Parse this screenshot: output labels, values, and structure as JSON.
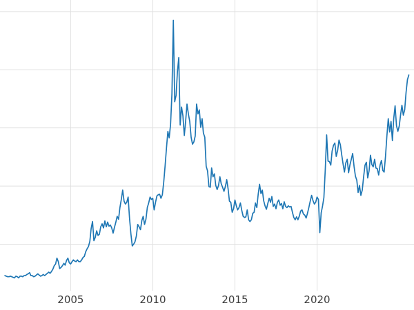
{
  "chart_data": {
    "type": "line",
    "title": "",
    "xlabel": "",
    "ylabel": "",
    "legend_position": "none",
    "grid": true,
    "line_color": "#1f77b4",
    "grid_color": "#e0e0e0",
    "tick_label_color": "#3c3c3c",
    "xlim": [
      2000.7,
      2025.9
    ],
    "ylim": [
      2,
      52
    ],
    "xticks": [
      {
        "value": 2005,
        "label": "2005"
      },
      {
        "value": 2010,
        "label": "2010"
      },
      {
        "value": 2015,
        "label": "2015"
      },
      {
        "value": 2020,
        "label": "2020"
      }
    ],
    "ygrid_values": [
      10,
      20,
      30,
      40,
      50
    ],
    "ytick_labels_visible": false,
    "x_start": 2001.0,
    "x_step_years": 0.0833333,
    "series": [
      {
        "name": "price",
        "values": [
          4.6,
          4.5,
          4.4,
          4.4,
          4.5,
          4.4,
          4.3,
          4.2,
          4.5,
          4.4,
          4.2,
          4.5,
          4.5,
          4.4,
          4.6,
          4.6,
          4.8,
          4.9,
          5.1,
          4.6,
          4.6,
          4.4,
          4.5,
          4.7,
          4.9,
          4.7,
          4.5,
          4.6,
          4.8,
          4.6,
          4.8,
          5.0,
          5.2,
          5.0,
          5.3,
          5.7,
          6.3,
          6.6,
          7.6,
          7.0,
          5.8,
          6.0,
          6.3,
          6.7,
          6.4,
          7.2,
          7.6,
          6.8,
          6.6,
          7.0,
          7.3,
          7.1,
          7.0,
          7.3,
          7.0,
          7.0,
          7.3,
          7.7,
          7.9,
          8.7,
          9.2,
          9.6,
          10.5,
          12.7,
          13.9,
          10.6,
          11.2,
          12.3,
          11.5,
          11.7,
          13.0,
          13.5,
          12.8,
          14.0,
          13.0,
          13.8,
          13.1,
          13.3,
          12.8,
          11.9,
          12.9,
          13.8,
          14.8,
          14.3,
          16.3,
          17.7,
          19.3,
          17.4,
          16.9,
          17.2,
          18.1,
          14.5,
          11.8,
          9.7,
          10.0,
          10.4,
          11.4,
          13.4,
          13.0,
          12.5,
          14.1,
          14.8,
          13.4,
          14.3,
          16.3,
          17.1,
          18.1,
          17.7,
          17.9,
          15.9,
          17.2,
          18.3,
          18.5,
          18.6,
          17.9,
          18.5,
          20.7,
          23.5,
          26.6,
          29.4,
          28.3,
          30.6,
          35.9,
          48.5,
          34.5,
          35.6,
          39.6,
          42.1,
          30.5,
          33.6,
          32.1,
          28.7,
          31.1,
          34.1,
          32.4,
          31.1,
          28.4,
          27.2,
          27.6,
          28.6,
          34.1,
          32.4,
          33.1,
          30.1,
          31.6,
          29.1,
          28.4,
          23.4,
          22.6,
          19.9,
          19.8,
          23.1,
          21.6,
          22.1,
          20.1,
          19.4,
          20.1,
          21.6,
          20.4,
          19.8,
          19.1,
          19.9,
          21.1,
          19.5,
          17.4,
          17.2,
          15.5,
          16.1,
          17.6,
          16.6,
          15.9,
          16.3,
          17.1,
          15.8,
          14.8,
          14.6,
          14.7,
          15.9,
          14.2,
          13.9,
          14.2,
          15.3,
          15.5,
          17.1,
          16.3,
          18.6,
          20.3,
          18.7,
          19.3,
          17.5,
          16.6,
          16.0,
          17.0,
          17.9,
          17.2,
          18.2,
          16.5,
          16.9,
          16.1,
          17.2,
          17.6,
          16.7,
          17.0,
          16.1,
          17.3,
          16.5,
          16.3,
          16.6,
          16.4,
          16.5,
          15.5,
          14.6,
          14.2,
          14.7,
          14.2,
          14.8,
          15.7,
          15.9,
          15.2,
          15.0,
          14.5,
          15.3,
          16.3,
          17.4,
          18.4,
          17.5,
          16.9,
          17.2,
          18.1,
          17.7,
          12.0,
          15.4,
          16.6,
          18.0,
          22.8,
          28.8,
          24.3,
          24.2,
          23.6,
          26.0,
          27.0,
          27.4,
          25.1,
          26.1,
          27.9,
          27.1,
          25.4,
          23.8,
          22.4,
          24.0,
          24.6,
          22.3,
          23.6,
          24.6,
          25.6,
          23.4,
          21.7,
          21.0,
          18.9,
          20.1,
          18.4,
          19.3,
          21.6,
          23.6,
          24.1,
          21.4,
          22.6,
          25.3,
          23.7,
          23.3,
          24.6,
          23.1,
          23.0,
          21.9,
          23.6,
          24.4,
          22.7,
          22.4,
          25.1,
          28.6,
          31.6,
          29.3,
          31.1,
          27.8,
          31.6,
          33.8,
          30.4,
          29.4,
          30.3,
          32.3,
          33.9,
          32.2,
          33.1,
          36.1,
          38.3,
          39.1
        ]
      }
    ]
  }
}
